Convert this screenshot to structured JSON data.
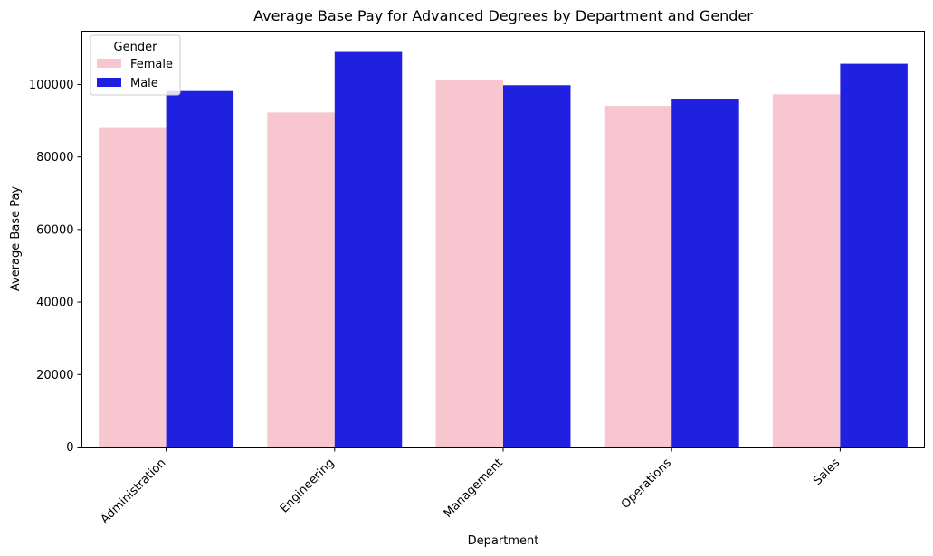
{
  "chart_data": {
    "type": "bar",
    "title": "Average Base Pay for Advanced Degrees by Department and Gender",
    "xlabel": "Department",
    "ylabel": "Average Base Pay",
    "categories": [
      "Administration",
      "Engineering",
      "Management",
      "Operations",
      "Sales"
    ],
    "series": [
      {
        "name": "Female",
        "color": "#f7c6cf",
        "values": [
          88000,
          92300,
          101300,
          94100,
          97300
        ]
      },
      {
        "name": "Male",
        "color": "#2020e0",
        "values": [
          98200,
          109200,
          99800,
          96000,
          105700
        ]
      }
    ],
    "ylim": [
      0,
      114700
    ],
    "yticks": [
      0,
      20000,
      40000,
      60000,
      80000,
      100000
    ],
    "legend": {
      "title": "Gender",
      "position": "top-left"
    },
    "grid": false
  }
}
